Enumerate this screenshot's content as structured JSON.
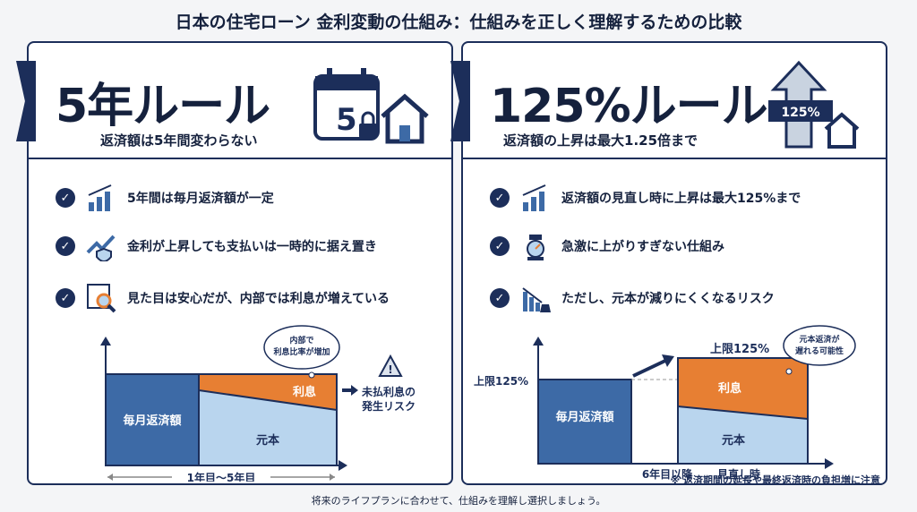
{
  "title": "日本の住宅ローン 金利変動の仕組み：仕組みを正しく理解するための比較",
  "left": {
    "heading": "5年ルール",
    "subheading": "返済額は5年間変わらない",
    "icon_number": "5",
    "items": [
      {
        "icon": "bar-chart-icon",
        "text": "5年間は毎月返済額が一定"
      },
      {
        "icon": "trend-up-shield-icon",
        "text": "金利が上昇しても支払いは一時的に据え置き"
      },
      {
        "icon": "magnifier-document-icon",
        "text": "見た目は安心だが、内部では利息が増えている"
      }
    ],
    "chart": {
      "payment": "毎月返済額",
      "interest": "利息",
      "principal": "元本",
      "bubble": [
        "内部で",
        "利息比率が増加"
      ],
      "risk": [
        "未払利息の",
        "発生リスク"
      ],
      "period": "1年目〜5年目"
    }
  },
  "right": {
    "heading": "125%ルール",
    "subheading": "返済額の上昇は最大1.25倍まで",
    "icon_label": "125%",
    "items": [
      {
        "icon": "bar-chart-icon",
        "text": "返済額の見直し時に上昇は最大125%まで"
      },
      {
        "icon": "gauge-icon",
        "text": "急激に上がりすぎない仕組み"
      },
      {
        "icon": "declining-chart-weight-icon",
        "text": "ただし、元本が減りにくくなるリスク"
      }
    ],
    "chart": {
      "payment": "毎月返済額",
      "interest": "利息",
      "principal": "元本",
      "cap_left": "上限125%",
      "cap_top": "上限125%",
      "bubble": [
        "元本返済が",
        "遅れる可能性"
      ],
      "x1": "6年目以降",
      "x2": "見直し時",
      "note": "※ 返済期間の延長や最終返済時の負担増に注意"
    }
  },
  "footer": "将来のライフプランに合わせて、仕組みを理解し選択しましょう。",
  "colors": {
    "navy": "#1c2e5a",
    "blue": "#3d6aa6",
    "light_blue": "#b9d5ee",
    "orange": "#e77f33"
  }
}
